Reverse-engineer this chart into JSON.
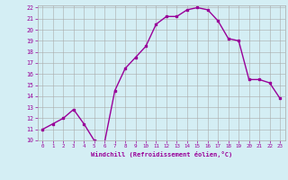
{
  "x": [
    0,
    1,
    2,
    3,
    4,
    5,
    6,
    7,
    8,
    9,
    10,
    11,
    12,
    13,
    14,
    15,
    16,
    17,
    18,
    19,
    20,
    21,
    22,
    23
  ],
  "y": [
    11.0,
    11.5,
    12.0,
    12.8,
    11.5,
    10.0,
    9.8,
    14.5,
    16.5,
    17.5,
    18.5,
    20.5,
    21.2,
    21.2,
    21.8,
    22.0,
    21.8,
    20.8,
    19.2,
    19.0,
    15.5,
    15.5,
    15.2,
    13.8
  ],
  "line_color": "#990099",
  "marker": "s",
  "marker_size": 2,
  "bg_color": "#d4eef4",
  "grid_color": "#aaaaaa",
  "xlabel": "Windchill (Refroidissement éolien,°C)",
  "xlabel_color": "#990099",
  "tick_color": "#990099",
  "ylim": [
    10,
    22
  ],
  "xlim": [
    -0.5,
    23.5
  ],
  "yticks": [
    10,
    11,
    12,
    13,
    14,
    15,
    16,
    17,
    18,
    19,
    20,
    21,
    22
  ],
  "xticks": [
    0,
    1,
    2,
    3,
    4,
    5,
    6,
    7,
    8,
    9,
    10,
    11,
    12,
    13,
    14,
    15,
    16,
    17,
    18,
    19,
    20,
    21,
    22,
    23
  ],
  "line_width": 1.0
}
